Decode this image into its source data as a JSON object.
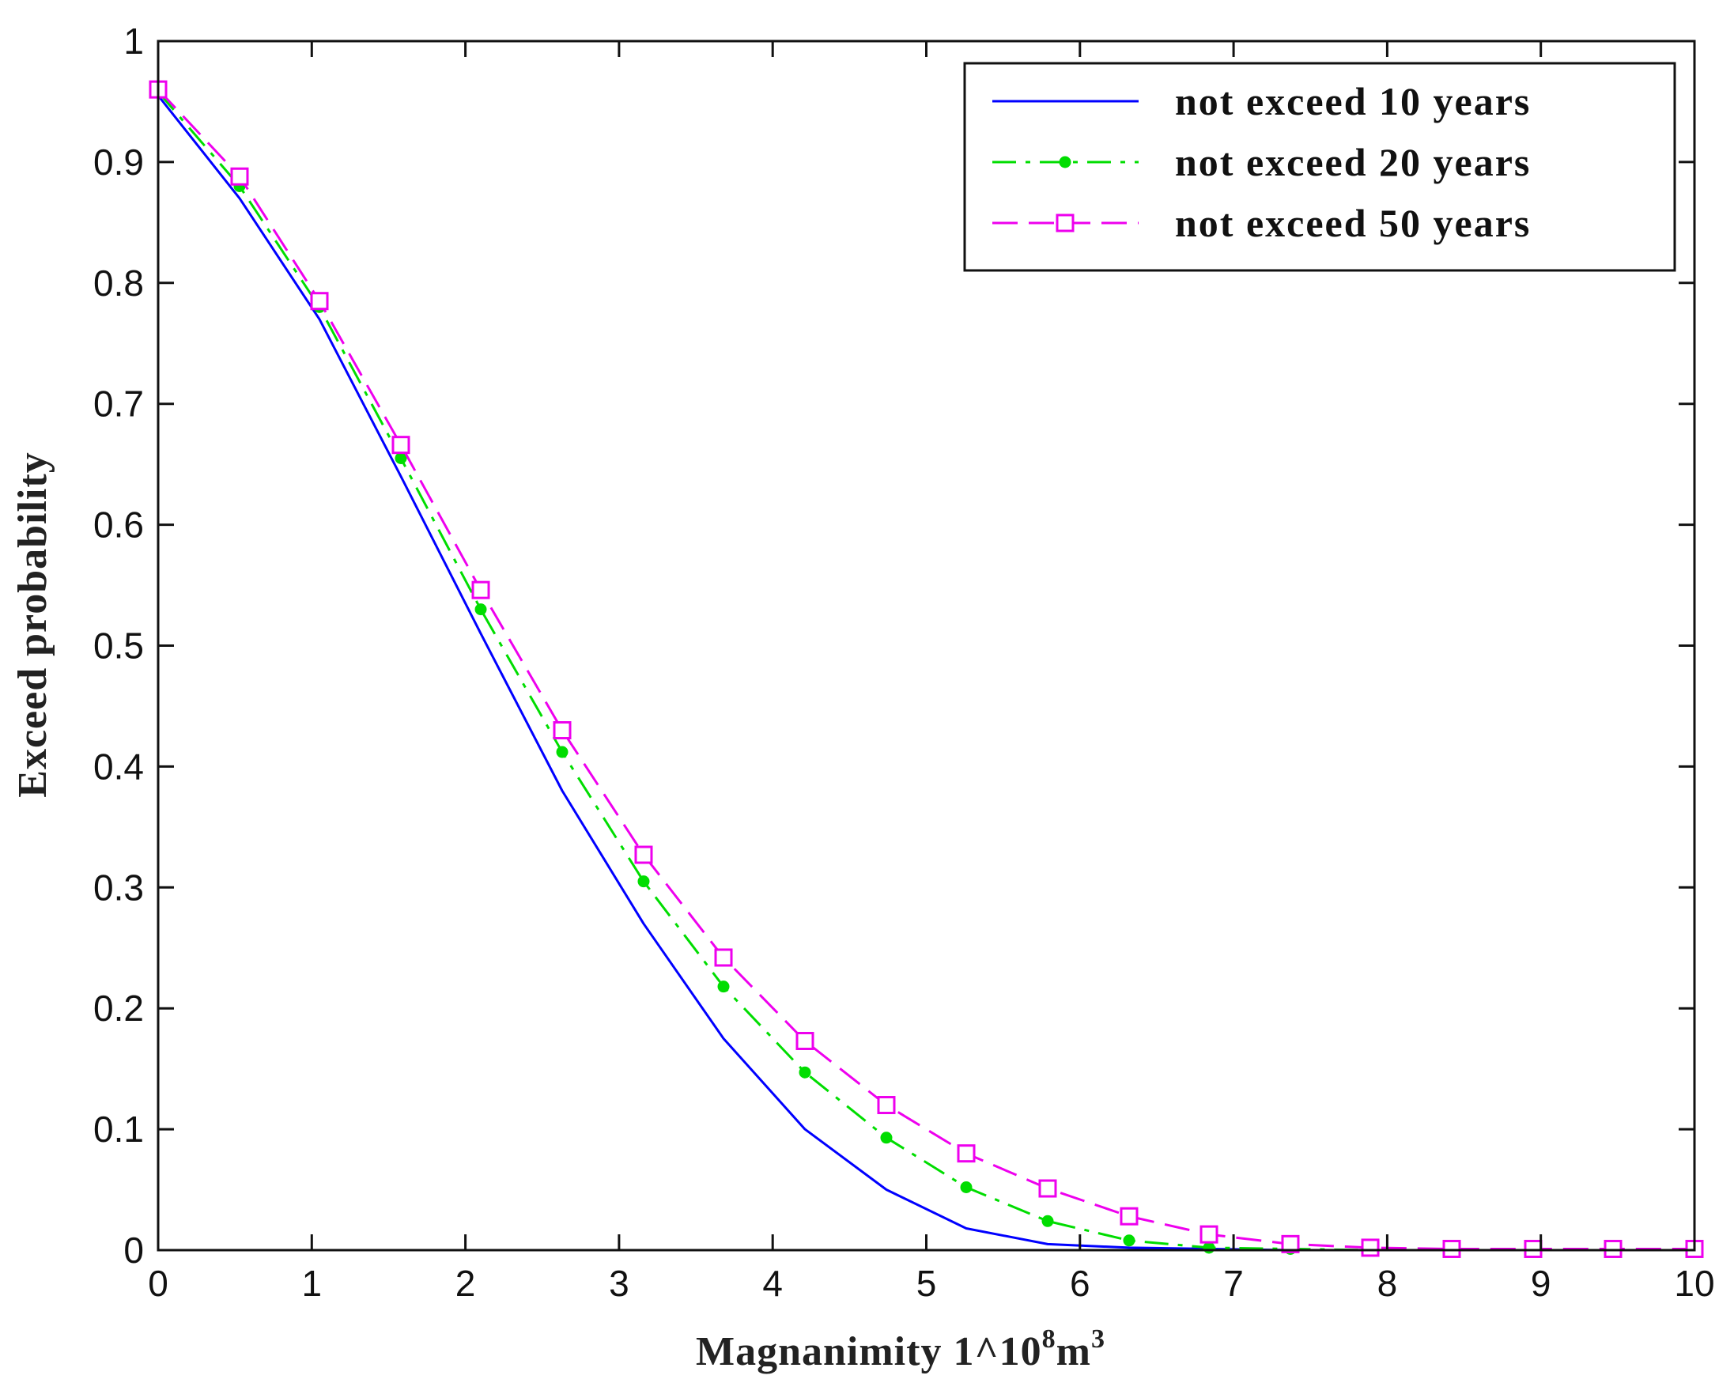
{
  "chart_data": {
    "type": "line",
    "title": "",
    "xlabel_main": "Magnanimity 1^10",
    "xlabel_sup1": "8",
    "xlabel_unit": "m",
    "xlabel_sup2": "3",
    "ylabel": "Exceed probability",
    "xlim": [
      0,
      10
    ],
    "ylim": [
      0,
      1
    ],
    "xticks": [
      "0",
      "1",
      "2",
      "3",
      "4",
      "5",
      "6",
      "7",
      "8",
      "9",
      "10"
    ],
    "yticks": [
      "0",
      "0.1",
      "0.2",
      "0.3",
      "0.4",
      "0.5",
      "0.6",
      "0.7",
      "0.8",
      "0.9",
      "1"
    ],
    "legend_position": "top-right",
    "series": [
      {
        "name": "not exceed 10 years",
        "color": "#0000ff",
        "style": "solid",
        "marker": "none",
        "x": [
          0,
          0.53,
          1.05,
          1.58,
          2.1,
          2.63,
          3.16,
          3.68,
          4.21,
          4.74,
          5.26,
          5.79,
          6.32,
          6.84,
          7.37,
          7.89,
          8.42,
          8.95,
          9.47,
          10
        ],
        "y": [
          0.955,
          0.87,
          0.77,
          0.64,
          0.51,
          0.38,
          0.27,
          0.175,
          0.1,
          0.05,
          0.018,
          0.005,
          0.002,
          0.001,
          0,
          0,
          0,
          0,
          0,
          0
        ]
      },
      {
        "name": "not exceed 20 years",
        "color": "#00dd00",
        "style": "dashdot",
        "marker": "dot",
        "x": [
          0,
          0.53,
          1.05,
          1.58,
          2.1,
          2.63,
          3.16,
          3.68,
          4.21,
          4.74,
          5.26,
          5.79,
          6.32,
          6.84,
          7.37,
          7.89,
          8.42,
          8.95,
          9.47,
          10
        ],
        "y": [
          0.958,
          0.88,
          0.78,
          0.655,
          0.53,
          0.412,
          0.305,
          0.218,
          0.147,
          0.093,
          0.052,
          0.024,
          0.008,
          0.002,
          0.001,
          0,
          0,
          0,
          0,
          0
        ]
      },
      {
        "name": "not exceed 50 years",
        "color": "#ee00ee",
        "style": "dashed",
        "marker": "square",
        "x": [
          0,
          0.53,
          1.05,
          1.58,
          2.1,
          2.63,
          3.16,
          3.68,
          4.21,
          4.74,
          5.26,
          5.79,
          6.32,
          6.84,
          7.37,
          7.89,
          8.42,
          8.95,
          9.47,
          10
        ],
        "y": [
          0.96,
          0.888,
          0.785,
          0.666,
          0.546,
          0.43,
          0.327,
          0.242,
          0.173,
          0.12,
          0.08,
          0.051,
          0.028,
          0.013,
          0.005,
          0.002,
          0.001,
          0.001,
          0.001,
          0.001
        ]
      }
    ]
  }
}
